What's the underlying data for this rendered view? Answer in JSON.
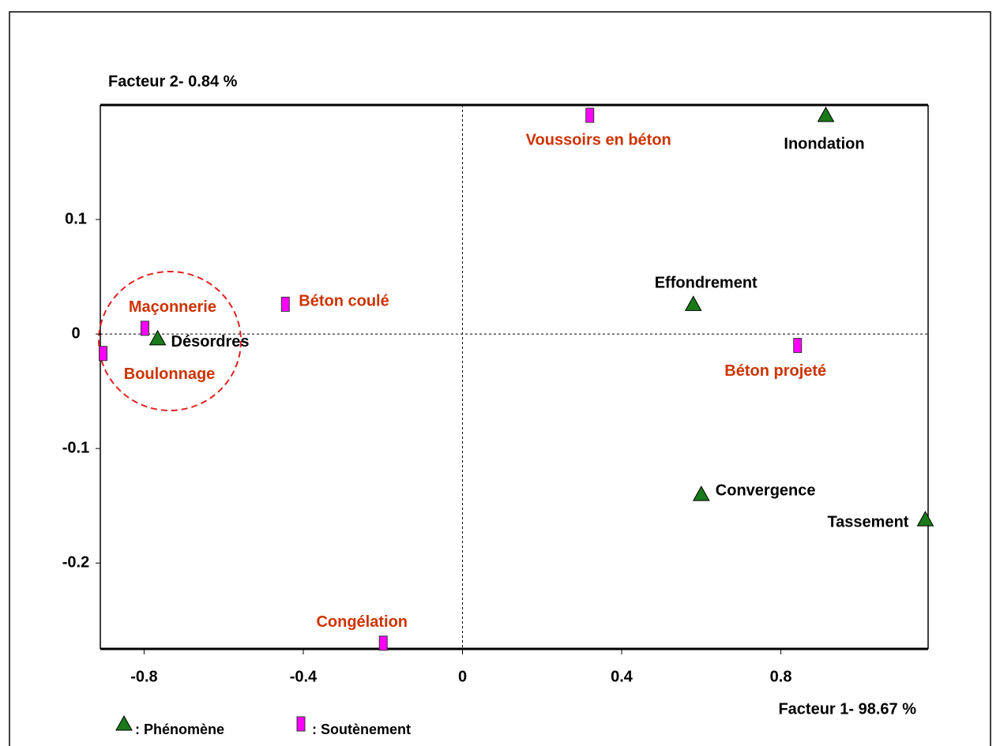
{
  "chart_data": {
    "type": "scatter",
    "xlabel": "Facteur 1- 98.67 %",
    "ylabel": "Facteur 2- 0.84 %",
    "xlim": [
      -0.91,
      1.17
    ],
    "ylim": [
      -0.275,
      0.2
    ],
    "xticks": [
      -0.8,
      -0.4,
      0,
      0.4,
      0.8
    ],
    "yticks": [
      -0.2,
      -0.1,
      0,
      0.1
    ],
    "series": [
      {
        "name": ": Phénomène",
        "color": "#1a7a1a",
        "marker": "triangle",
        "labels": [
          "Inondation",
          "Effondrement",
          "Désordres",
          "Convergence",
          "Tassement"
        ],
        "x": [
          0.913,
          0.58,
          -0.766,
          0.6,
          1.163
        ],
        "values": [
          0.191,
          0.026,
          -0.004,
          -0.14,
          -0.162
        ]
      },
      {
        "name": ": Soutènement",
        "color": "#ff00ff",
        "marker": "rect",
        "labels": [
          "Voussoirs en béton",
          "Béton coulé",
          "Maçonnerie",
          "Boulonnage",
          "Béton projeté",
          "Congélation"
        ],
        "x": [
          0.32,
          -0.445,
          -0.798,
          -0.903,
          0.842,
          -0.199
        ],
        "values": [
          0.191,
          0.026,
          0.005,
          -0.017,
          -0.01,
          -0.27
        ]
      }
    ]
  }
}
